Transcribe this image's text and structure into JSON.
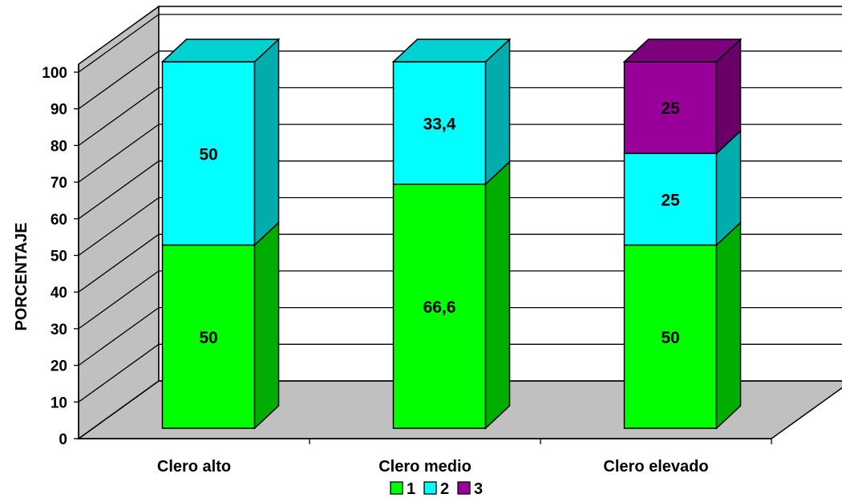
{
  "chart_data": {
    "type": "bar",
    "stacked": true,
    "three_d": true,
    "ylabel": "PORCENTAJE",
    "xlabel": "",
    "ylim": [
      0,
      100
    ],
    "yticks": [
      "0",
      "10",
      "20",
      "30",
      "40",
      "50",
      "60",
      "70",
      "80",
      "90",
      "100"
    ],
    "categories": [
      "Clero alto",
      "Clero medio",
      "Clero elevado"
    ],
    "series": [
      {
        "name": "1",
        "values": [
          50,
          66.6,
          50
        ],
        "labels": [
          "50",
          "66,6",
          "50"
        ],
        "color": "#00FF00"
      },
      {
        "name": "2",
        "values": [
          50,
          33.4,
          25
        ],
        "labels": [
          "50",
          "33,4",
          "25"
        ],
        "color": "#00FFFF"
      },
      {
        "name": "3",
        "values": [
          0,
          0,
          25
        ],
        "labels": [
          "",
          "",
          "25"
        ],
        "color": "#990099"
      }
    ],
    "grid": true,
    "legend": "bottom",
    "wall_color": "#C0C0C0",
    "floor_color": "#C0C0C0"
  }
}
